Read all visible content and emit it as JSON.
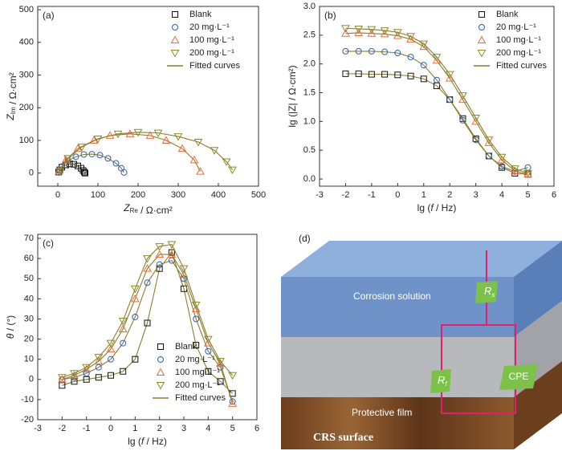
{
  "chart_data": [
    {
      "type": "scatter",
      "panel": "(a)",
      "xlabel": [
        "Z",
        "Re",
        " / Ω·cm²"
      ],
      "ylabel": [
        "Z",
        "Im",
        " / Ω·cm²"
      ],
      "xlim": [
        -50,
        500
      ],
      "ylim": [
        -40,
        510
      ],
      "xticks": [
        0,
        100,
        200,
        300,
        400,
        500
      ],
      "yticks": [
        0,
        100,
        200,
        300,
        400,
        500
      ],
      "fit": {
        "name": "Fitted curves",
        "color": "#8b7d2a"
      },
      "series": [
        {
          "name": "Blank",
          "color": "#111111",
          "marker": "square",
          "x": [
            2,
            5,
            10,
            20,
            30,
            40,
            50,
            58,
            63,
            66,
            68
          ],
          "values": [
            3,
            10,
            18,
            25,
            28,
            27,
            22,
            15,
            8,
            3,
            0
          ]
        },
        {
          "name": "20 mg·L⁻¹",
          "color": "#2f5fb0",
          "marker": "circle",
          "x": [
            2,
            10,
            25,
            45,
            65,
            85,
            105,
            125,
            145,
            158,
            165
          ],
          "values": [
            2,
            20,
            38,
            50,
            57,
            58,
            55,
            45,
            30,
            15,
            2
          ]
        },
        {
          "name": "100 mg·L⁻¹",
          "color": "#f06a3c",
          "marker": "triangle-up",
          "x": [
            3,
            20,
            50,
            90,
            130,
            180,
            230,
            270,
            310,
            340,
            355
          ],
          "values": [
            5,
            40,
            75,
            100,
            115,
            120,
            115,
            100,
            75,
            40,
            5
          ]
        },
        {
          "name": "200 mg·L⁻¹",
          "color": "#8b8a2a",
          "marker": "triangle-down",
          "x": [
            5,
            25,
            60,
            100,
            150,
            200,
            250,
            300,
            350,
            390,
            420,
            435
          ],
          "values": [
            5,
            45,
            80,
            105,
            120,
            125,
            123,
            112,
            95,
            70,
            35,
            10
          ]
        }
      ]
    },
    {
      "type": "scatter",
      "panel": "(b)",
      "xlabel": [
        "lg (",
        "f",
        " / Hz)"
      ],
      "ylabel": [
        "lg (|Z| / Ω·cm²)"
      ],
      "xlim": [
        -3,
        6
      ],
      "ylim": [
        -0.125,
        3.0
      ],
      "xticks": [
        -3,
        -2,
        -1,
        0,
        1,
        2,
        3,
        4,
        5,
        6
      ],
      "yticks": [
        {
          "value": 0,
          "label": "0.0"
        },
        0.5,
        {
          "value": 1,
          "label": "1.0"
        },
        1.5,
        {
          "value": 2,
          "label": "2.0"
        },
        2.5,
        {
          "value": 3,
          "label": "3.0"
        }
      ],
      "fit": {
        "name": "Fitted curves",
        "color": "#8b7d2a"
      },
      "series": [
        {
          "name": "Blank",
          "color": "#111111",
          "marker": "square",
          "x": [
            -2,
            -1.5,
            -1,
            -0.5,
            0,
            0.5,
            1,
            1.5,
            2,
            2.5,
            3,
            3.5,
            4,
            4.5,
            5
          ],
          "values": [
            1.83,
            1.83,
            1.82,
            1.82,
            1.81,
            1.79,
            1.74,
            1.62,
            1.38,
            1.05,
            0.7,
            0.4,
            0.2,
            0.1,
            0.08
          ]
        },
        {
          "name": "20 mg·L⁻¹",
          "color": "#2f5fb0",
          "marker": "circle",
          "x": [
            -2,
            -1.5,
            -1,
            -0.5,
            0,
            0.5,
            1,
            1.5,
            2,
            2.5,
            3,
            3.5,
            4,
            4.5,
            5
          ],
          "values": [
            2.22,
            2.22,
            2.22,
            2.21,
            2.19,
            2.12,
            1.98,
            1.72,
            1.38,
            1.02,
            0.68,
            0.4,
            0.22,
            0.13,
            0.2
          ]
        },
        {
          "name": "100 mg·L⁻¹",
          "color": "#f06a3c",
          "marker": "triangle-up",
          "x": [
            -2,
            -1.5,
            -1,
            -0.5,
            0,
            0.5,
            1,
            1.5,
            2,
            2.5,
            3,
            3.5,
            4,
            4.5,
            5
          ],
          "values": [
            2.53,
            2.54,
            2.53,
            2.52,
            2.49,
            2.43,
            2.3,
            2.06,
            1.75,
            1.38,
            1.0,
            0.63,
            0.33,
            0.14,
            0.08
          ]
        },
        {
          "name": "200 mg·L⁻¹",
          "color": "#8b8a2a",
          "marker": "triangle-down",
          "x": [
            -2,
            -1.5,
            -1,
            -0.5,
            0,
            0.5,
            1,
            1.5,
            2,
            2.5,
            3,
            3.5,
            4,
            4.5,
            5
          ],
          "values": [
            2.62,
            2.61,
            2.6,
            2.58,
            2.55,
            2.48,
            2.35,
            2.12,
            1.82,
            1.45,
            1.06,
            0.68,
            0.38,
            0.18,
            0.1
          ]
        }
      ]
    },
    {
      "type": "scatter",
      "panel": "(c)",
      "xlabel": [
        "lg (",
        "f",
        " / Hz)"
      ],
      "ylabel": [
        "θ",
        " / (°)"
      ],
      "xlim": [
        -3,
        6
      ],
      "ylim": [
        -20,
        72
      ],
      "xticks": [
        -3,
        -2,
        -1,
        0,
        1,
        2,
        3,
        4,
        5,
        6
      ],
      "yticks": [
        -20,
        -10,
        0,
        10,
        20,
        30,
        40,
        50,
        60,
        70
      ],
      "fit": {
        "name": "Fitted curves",
        "color": "#8b7d2a"
      },
      "series": [
        {
          "name": "Blank",
          "color": "#111111",
          "marker": "square",
          "x": [
            -2,
            -1.5,
            -1,
            -0.5,
            0,
            0.5,
            1,
            1.5,
            2,
            2.5,
            3,
            3.5,
            4,
            4.5,
            5
          ],
          "values": [
            -3,
            -1,
            0,
            1,
            2,
            4,
            10,
            28,
            55,
            63,
            45,
            17,
            4,
            -1,
            -7
          ]
        },
        {
          "name": "20 mg·L⁻¹",
          "color": "#2f5fb0",
          "marker": "circle",
          "x": [
            -2,
            -1.5,
            -1,
            -0.5,
            0,
            0.5,
            1,
            1.5,
            2,
            2.5,
            3,
            3.5,
            4,
            4.5,
            5
          ],
          "values": [
            0,
            1,
            3,
            6,
            10,
            18,
            31,
            48,
            57,
            59,
            50,
            30,
            14,
            6,
            -11
          ]
        },
        {
          "name": "100 mg·L⁻¹",
          "color": "#f06a3c",
          "marker": "triangle-up",
          "x": [
            -2,
            -1.5,
            -1,
            -0.5,
            0,
            0.5,
            1,
            1.5,
            2,
            2.5,
            3,
            3.5,
            4,
            4.5,
            5
          ],
          "values": [
            0,
            2,
            5,
            9,
            15,
            25,
            40,
            55,
            62,
            62,
            52,
            35,
            18,
            8,
            -12
          ]
        },
        {
          "name": "200 mg·L⁻¹",
          "color": "#8b8a2a",
          "marker": "triangle-down",
          "x": [
            -2,
            -1.5,
            -1,
            -0.5,
            0,
            0.5,
            1,
            1.5,
            2,
            2.5,
            3,
            3.5,
            4,
            4.5,
            5
          ],
          "values": [
            1,
            3,
            6,
            11,
            18,
            29,
            45,
            60,
            66,
            67,
            55,
            37,
            20,
            9,
            2
          ]
        }
      ]
    }
  ],
  "diagram": {
    "panel": "(d)",
    "layers": [
      "Corrosion solution",
      "Protective film",
      "CRS surface"
    ],
    "elements": [
      {
        "base": "R",
        "sub": "s"
      },
      {
        "base": "R",
        "sub": "f"
      },
      {
        "base": "CPE"
      }
    ]
  }
}
